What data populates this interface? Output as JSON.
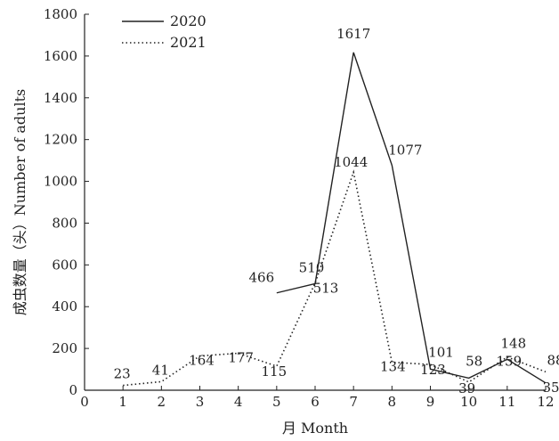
{
  "chart_data": {
    "type": "line",
    "xlabel": "月 Month",
    "ylabel": "成虫数量（头）Number of adults",
    "xlim": [
      0,
      12
    ],
    "ylim": [
      0,
      1800
    ],
    "x_ticks": [
      0,
      1,
      2,
      3,
      4,
      5,
      6,
      7,
      8,
      9,
      10,
      11,
      12
    ],
    "y_ticks": [
      0,
      200,
      400,
      600,
      800,
      1000,
      1200,
      1400,
      1600,
      1800
    ],
    "grid": false,
    "legend": "top-left",
    "series": [
      {
        "name": "2020",
        "style": "solid",
        "color": "#222222",
        "x": [
          5,
          6,
          7,
          8,
          9,
          10,
          11,
          12
        ],
        "y": [
          466,
          510,
          1617,
          1077,
          101,
          58,
          148,
          35
        ]
      },
      {
        "name": "2021",
        "style": "dotted",
        "color": "#222222",
        "x": [
          1,
          2,
          3,
          4,
          5,
          6,
          7,
          8,
          9,
          10,
          11,
          12
        ],
        "y": [
          23,
          41,
          164,
          177,
          115,
          513,
          1044,
          134,
          123,
          39,
          159,
          88
        ]
      }
    ]
  }
}
